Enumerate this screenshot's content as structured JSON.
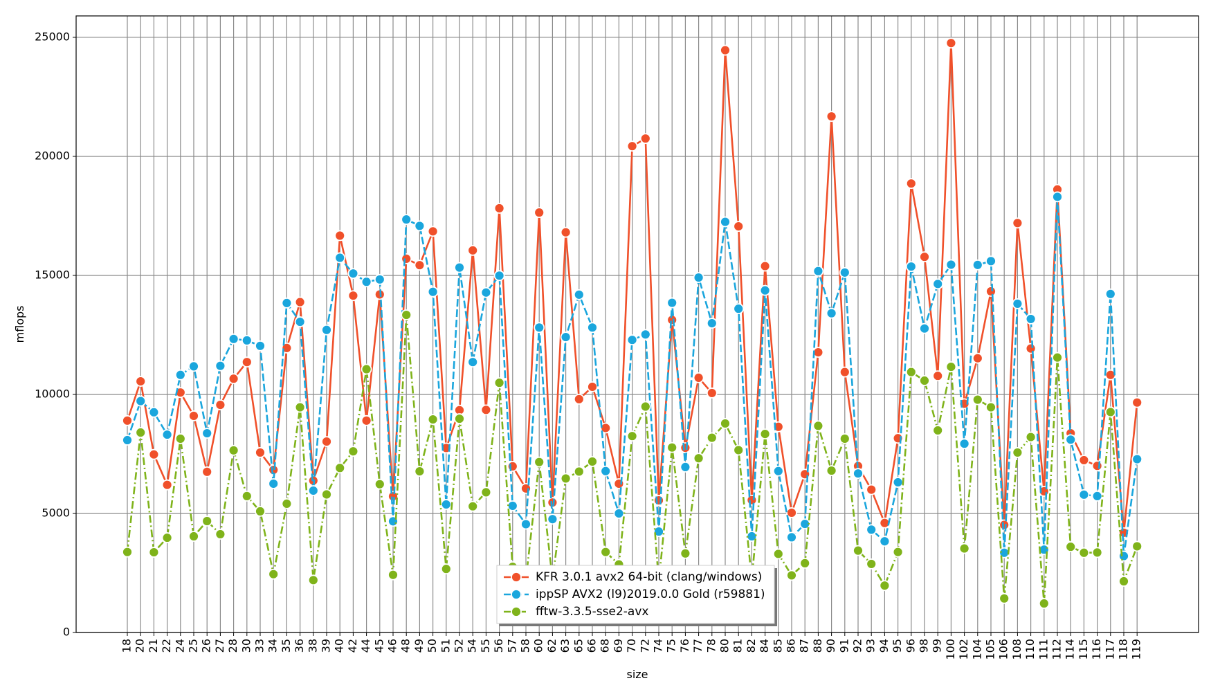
{
  "chart_data": {
    "type": "line",
    "title": "",
    "xlabel": "size",
    "ylabel": "mflops",
    "ylim": [
      0,
      25900
    ],
    "yticks": [
      0,
      5000,
      10000,
      15000,
      20000,
      25000
    ],
    "grid": true,
    "legend_position": "bottom-center",
    "categories": [
      "18",
      "20",
      "21",
      "22",
      "24",
      "25",
      "26",
      "27",
      "28",
      "30",
      "33",
      "34",
      "35",
      "36",
      "38",
      "39",
      "40",
      "42",
      "44",
      "45",
      "46",
      "48",
      "49",
      "50",
      "51",
      "52",
      "54",
      "55",
      "56",
      "57",
      "58",
      "60",
      "62",
      "63",
      "65",
      "66",
      "68",
      "69",
      "70",
      "72",
      "74",
      "75",
      "76",
      "77",
      "78",
      "80",
      "81",
      "82",
      "84",
      "85",
      "86",
      "87",
      "88",
      "90",
      "91",
      "92",
      "93",
      "94",
      "95",
      "96",
      "98",
      "99",
      "100",
      "102",
      "104",
      "105",
      "106",
      "108",
      "110",
      "111",
      "112",
      "114",
      "115",
      "116",
      "117",
      "118",
      "119"
    ],
    "series": [
      {
        "name": "KFR 3.0.1 avx2 64-bit (clang/windows)",
        "color": "#f0502a",
        "dash": "solid",
        "values": [
          8900,
          10550,
          7480,
          6200,
          10080,
          9100,
          6750,
          9560,
          10660,
          11360,
          7560,
          6830,
          11950,
          13880,
          6380,
          8020,
          16670,
          14150,
          8900,
          14200,
          5720,
          15700,
          15430,
          16850,
          7750,
          9340,
          16050,
          9350,
          17820,
          6980,
          6050,
          17640,
          5460,
          16810,
          9800,
          10320,
          8590,
          6250,
          20430,
          20750,
          5550,
          13130,
          7760,
          10700,
          10060,
          24460,
          17060,
          5560,
          15390,
          8640,
          5030,
          6650,
          11770,
          21680,
          10940,
          6990,
          6000,
          4600,
          8160,
          18860,
          15780,
          10780,
          24760,
          9610,
          11520,
          14330,
          4520,
          17200,
          11930,
          5930,
          18610,
          8370,
          7240,
          7000,
          10820,
          4190,
          9660
        ]
      },
      {
        "name": "ippSP AVX2 (l9)2019.0.0 Gold (r59881)",
        "color": "#1aa6dd",
        "dash": "dashed",
        "values": [
          8080,
          9720,
          9250,
          8310,
          10820,
          11180,
          8370,
          11200,
          12330,
          12270,
          12040,
          6250,
          13840,
          13050,
          5960,
          12710,
          15740,
          15080,
          14730,
          14830,
          4670,
          17350,
          17080,
          14310,
          5380,
          15330,
          11360,
          14280,
          14990,
          5320,
          4550,
          12810,
          4760,
          12410,
          14190,
          12810,
          6780,
          5000,
          12290,
          12520,
          4240,
          13850,
          6950,
          14910,
          12990,
          17250,
          13600,
          4040,
          14370,
          6780,
          4000,
          4560,
          15180,
          13410,
          15120,
          6680,
          4320,
          3830,
          6310,
          15370,
          12770,
          14640,
          15450,
          7930,
          15440,
          15600,
          3350,
          13810,
          13170,
          3480,
          18300,
          8100,
          5790,
          5730,
          14220,
          3210,
          7280
        ]
      },
      {
        "name": "fftw-3.3.5-sse2-avx",
        "color": "#7fb31a",
        "dash": "dashdot",
        "values": [
          3380,
          8400,
          3370,
          3980,
          8140,
          4040,
          4680,
          4130,
          7650,
          5730,
          5090,
          2450,
          5410,
          9460,
          2200,
          5800,
          6910,
          7610,
          11060,
          6230,
          2420,
          13340,
          6770,
          8950,
          2670,
          8980,
          5300,
          5890,
          10490,
          2760,
          2230,
          7160,
          2240,
          6470,
          6760,
          7180,
          3380,
          2860,
          8250,
          9490,
          2120,
          7770,
          3320,
          7320,
          8180,
          8780,
          7660,
          2230,
          8340,
          3300,
          2400,
          2910,
          8680,
          6800,
          8140,
          3440,
          2880,
          1970,
          3380,
          10940,
          10580,
          8490,
          11160,
          3530,
          9780,
          9460,
          1430,
          7560,
          8210,
          1220,
          11550,
          3600,
          3350,
          3360,
          9260,
          2150,
          3620
        ]
      }
    ]
  }
}
